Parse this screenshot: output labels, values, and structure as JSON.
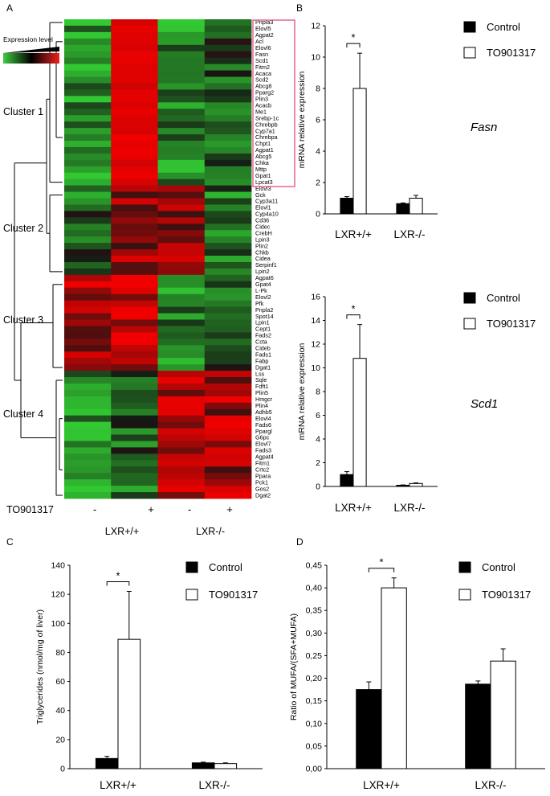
{
  "panel_labels": [
    "A",
    "B",
    "C",
    "D"
  ],
  "heatmap": {
    "legend_label": "Expression level",
    "row_labels": [
      "Pnpla3",
      "Elovl5",
      "Agpat2",
      "Acl",
      "Elovl6",
      "Fasn",
      "Scd1",
      "Fitm2",
      "Acaca",
      "Scd2",
      "Abcg8",
      "Pparg2",
      "Plin3",
      "Acacb",
      "Me1",
      "Srebp-1c",
      "Chrebpb",
      "Cyp7a1",
      "Chrebpa",
      "Chpt1",
      "Agpat1",
      "Abcg5",
      "Chka",
      "Mttp",
      "Gpat1",
      "Lpcat3",
      "Elovl3",
      "Gck",
      "Cyp3a11",
      "Elovl1",
      "Cyp4a10",
      "Cd36",
      "Cidec",
      "CrebH",
      "Lpin3",
      "Plin2",
      "Chkb",
      "Cidea",
      "Serpinf1",
      "Lpin2",
      "Agpat6",
      "Gpat4",
      "L-Pk",
      "Elovl2",
      "Pfk",
      "Pnpla2",
      "Spot14",
      "Lpin1",
      "Cept1",
      "Fads2",
      "Ccta",
      "Cideb",
      "Fads1",
      "Fabp",
      "Dgat1",
      "Lss",
      "Sqle",
      "Fdft1",
      "Plin5",
      "Hmgcr",
      "Plin4",
      "Adhb5",
      "Elovl4",
      "Fads6",
      "Ppargl",
      "G6pc",
      "Elovl7",
      "Fads3",
      "Agpat4",
      "Fitm1",
      "Crtc2",
      "Ppara",
      "Pck1",
      "Gos2",
      "Dgat2"
    ],
    "cluster_labels": [
      "Cluster 1",
      "Cluster 2",
      "Cluster 3",
      "Cluster 4"
    ],
    "treatment_label": "TO901317",
    "column_signs": [
      "-",
      "+",
      "-",
      "+"
    ],
    "genotype_labels": [
      "LXR+/+",
      "LXR-/-"
    ]
  },
  "chart_data": [
    {
      "id": "B_fasn",
      "type": "bar",
      "categories": [
        "LXR+/+",
        "LXR-/-"
      ],
      "series": [
        {
          "name": "Control",
          "values": [
            1.0,
            0.65
          ],
          "errors": [
            0.1,
            0.05
          ]
        },
        {
          "name": "TO901317",
          "values": [
            8.0,
            1.0
          ],
          "errors": [
            2.25,
            0.18
          ]
        }
      ],
      "annotation": "Fasn",
      "ylabel": "mRNA relative expression",
      "ylim": [
        0,
        12
      ],
      "yticks": [
        "0",
        "2",
        "4",
        "6",
        "8",
        "10",
        "12"
      ],
      "significance": "*",
      "legend_position": "top-right"
    },
    {
      "id": "B_scd1",
      "type": "bar",
      "categories": [
        "LXR+/+",
        "LXR-/-"
      ],
      "series": [
        {
          "name": "Control",
          "values": [
            1.0,
            0.1
          ],
          "errors": [
            0.25,
            0.03
          ]
        },
        {
          "name": "TO901317",
          "values": [
            10.8,
            0.25
          ],
          "errors": [
            2.85,
            0.05
          ]
        }
      ],
      "annotation": "Scd1",
      "ylabel": "mRNA relative expression",
      "ylim": [
        0,
        16
      ],
      "yticks": [
        "0",
        "2",
        "4",
        "6",
        "8",
        "10",
        "12",
        "14",
        "16"
      ],
      "significance": "*",
      "legend_position": "top-right"
    },
    {
      "id": "C_tg",
      "type": "bar",
      "categories": [
        "LXR+/+",
        "LXR-/-"
      ],
      "series": [
        {
          "name": "Control",
          "values": [
            7,
            4
          ],
          "errors": [
            1.5,
            0.5
          ]
        },
        {
          "name": "TO901317",
          "values": [
            89,
            3.5
          ],
          "errors": [
            33,
            0.5
          ]
        }
      ],
      "ylabel": "Triglycerides (nmol/mg of liver)",
      "ylim": [
        0,
        140
      ],
      "yticks": [
        "0",
        "20",
        "40",
        "60",
        "80",
        "100",
        "120",
        "140"
      ],
      "significance": "*",
      "legend_position": "top-right"
    },
    {
      "id": "D_ratio",
      "type": "bar",
      "categories": [
        "LXR+/+",
        "LXR-/-"
      ],
      "series": [
        {
          "name": "Control",
          "values": [
            0.175,
            0.187
          ],
          "errors": [
            0.017,
            0.007
          ]
        },
        {
          "name": "TO901317",
          "values": [
            0.4,
            0.238
          ],
          "errors": [
            0.022,
            0.027
          ]
        }
      ],
      "ylabel": "Ratio of MUFA/(SFA+MUFA)",
      "ylim": [
        0,
        0.45
      ],
      "yticks": [
        "0,00",
        "0,05",
        "0,10",
        "0,15",
        "0,20",
        "0,25",
        "0,30",
        "0,35",
        "0,40",
        "0,45"
      ],
      "significance": "*",
      "legend_position": "top-right"
    }
  ]
}
